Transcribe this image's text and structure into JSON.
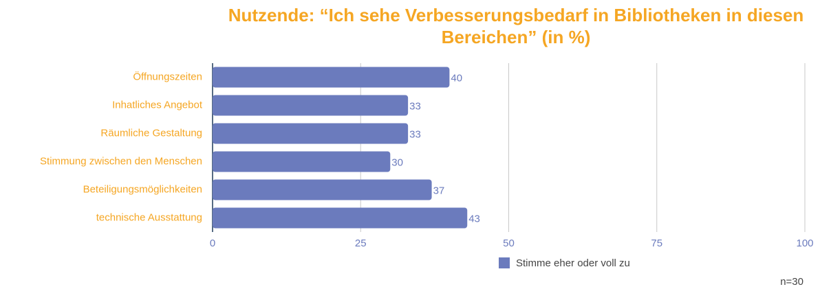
{
  "chart_data": {
    "type": "hbar",
    "title": "Nutzende: “Ich sehe Verbesserungsbedarf in Bibliotheken in diesen Bereichen” (in %)",
    "categories": [
      "Öffnungszeiten",
      "Inhatliches Angebot",
      "Räumliche Gestaltung",
      "Stimmung zwischen den Menschen",
      "Beteiligungsmöglichkeiten",
      "technische Ausstattung"
    ],
    "series": [
      {
        "name": "Stimme eher oder voll zu",
        "color": "#6b7bbd",
        "values": [
          40,
          33,
          33,
          30,
          37,
          43
        ]
      }
    ],
    "xlim": [
      0,
      100
    ],
    "xticks": [
      0,
      25,
      50,
      75,
      100
    ],
    "grid": true,
    "legend": "bottom",
    "note": "n=30"
  }
}
